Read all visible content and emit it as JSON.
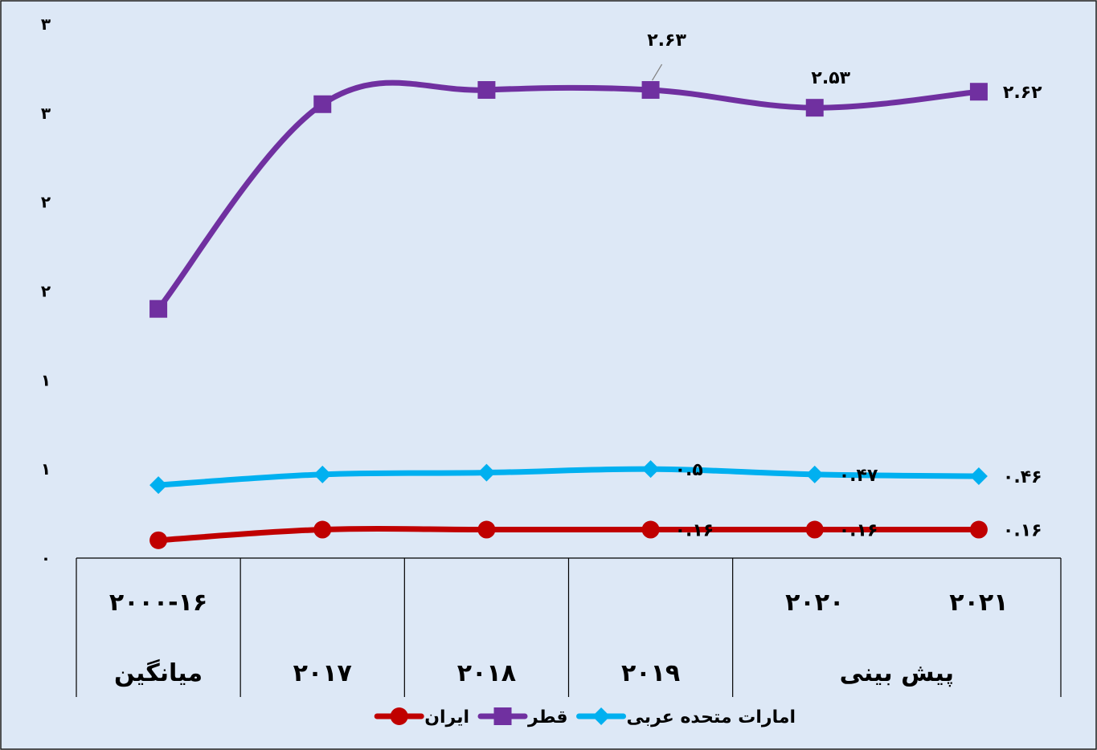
{
  "chart_data": {
    "type": "line",
    "rtl": true,
    "ylim": [
      0,
      3
    ],
    "yticks": [
      {
        "value": 0,
        "label": "۰"
      },
      {
        "value": 0.5,
        "label": "۱"
      },
      {
        "value": 1,
        "label": "۱"
      },
      {
        "value": 1.5,
        "label": "۲"
      },
      {
        "value": 2,
        "label": "۲"
      },
      {
        "value": 2.5,
        "label": "۳"
      },
      {
        "value": 3,
        "label": "۳"
      }
    ],
    "x": [
      "2000-16",
      "2017",
      "2018",
      "2019",
      "2020",
      "2021"
    ],
    "category_rows": {
      "top": [
        {
          "label": "۲۰۰۰-۱۶",
          "col": 0
        },
        {
          "label": "۲۰۲۰",
          "col": 4
        },
        {
          "label": "۲۰۲۱",
          "col": 5
        }
      ],
      "bottom": [
        {
          "label": "میانگین",
          "span": [
            0,
            0
          ]
        },
        {
          "label": "۲۰۱۷",
          "span": [
            1,
            1
          ]
        },
        {
          "label": "۲۰۱۸",
          "span": [
            2,
            2
          ]
        },
        {
          "label": "۲۰۱۹",
          "span": [
            3,
            3
          ]
        },
        {
          "label": "پیش بینی",
          "span": [
            4,
            5
          ]
        }
      ]
    },
    "series": [
      {
        "name": "ایران",
        "color": "#c00000",
        "marker": "circle",
        "values": [
          0.1,
          0.16,
          0.16,
          0.16,
          0.16,
          0.16
        ],
        "labels": [
          {
            "index": 3,
            "text": "۰.۱۶"
          },
          {
            "index": 4,
            "text": "۰.۱۶"
          },
          {
            "index": 5,
            "text": "۰.۱۶"
          }
        ]
      },
      {
        "name": "قطر",
        "color": "#7030a0",
        "marker": "square",
        "values": [
          1.4,
          2.55,
          2.63,
          2.63,
          2.53,
          2.62
        ],
        "labels": [
          {
            "index": 3,
            "text": "۲.۶۳"
          },
          {
            "index": 4,
            "text": "۲.۵۳"
          },
          {
            "index": 5,
            "text": "۲.۶۲"
          }
        ]
      },
      {
        "name": "امارات متحده عربی",
        "color": "#00b0f0",
        "marker": "diamond",
        "values": [
          0.41,
          0.47,
          0.48,
          0.5,
          0.47,
          0.46
        ],
        "labels": [
          {
            "index": 3,
            "text": "۰.۵"
          },
          {
            "index": 4,
            "text": "۰.۴۷"
          },
          {
            "index": 5,
            "text": "۰.۴۶"
          }
        ]
      }
    ],
    "legend": {
      "position": "bottom",
      "order": [
        "امارات متحده عربی",
        "قطر",
        "ایران"
      ]
    }
  }
}
